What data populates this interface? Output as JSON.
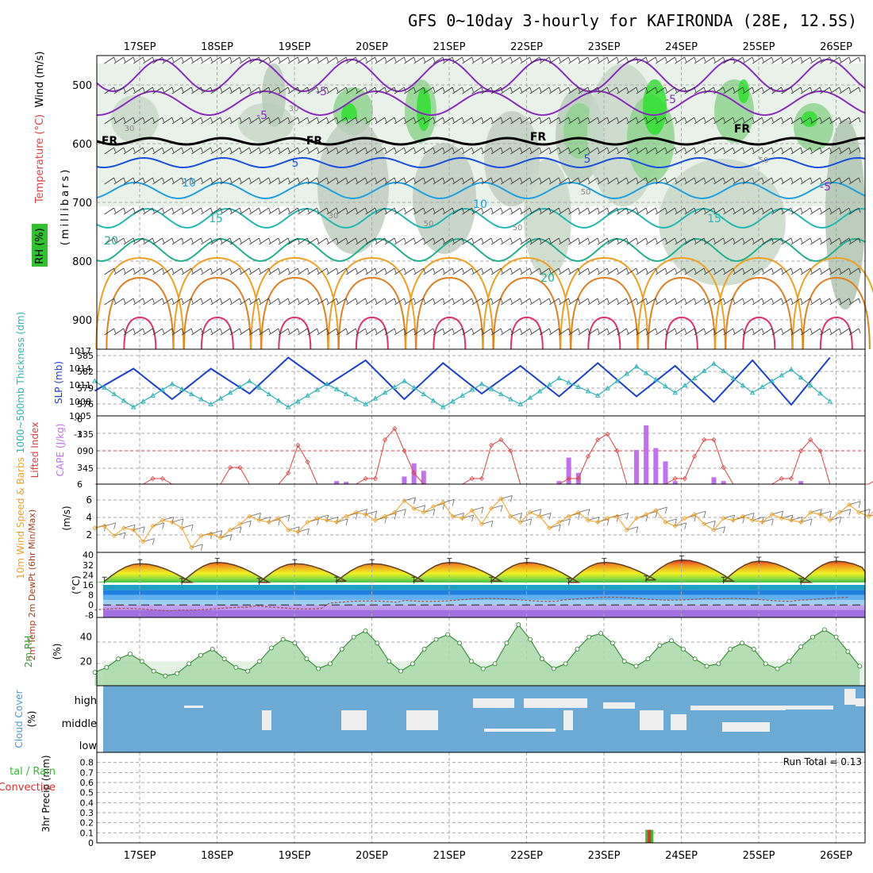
{
  "title": "GFS 0~10day 3-hourly for KAFIRONDA (28E, 12.5S)",
  "date_labels": [
    "17SEP",
    "18SEP",
    "19SEP",
    "20SEP",
    "21SEP",
    "22SEP",
    "23SEP",
    "24SEP",
    "25SEP",
    "26SEP"
  ],
  "run_total": "Run Total = 0.13",
  "panels": {
    "upper": {
      "ylabel_parts": [
        "Wind (m/s)",
        "Temperature (°C)",
        "RH (%)"
      ],
      "ylabel_units": "(millibars)",
      "yticks": [
        "500",
        "600",
        "700",
        "800",
        "900"
      ],
      "isotherm_labels": [
        "-5",
        "-5",
        "-5",
        "-5",
        "5",
        "5",
        "10",
        "10",
        "15",
        "15",
        "20",
        "20",
        "FR",
        "FR",
        "FR",
        "FR"
      ],
      "rh_labels": [
        "30",
        "30",
        "30",
        "50",
        "50",
        "50",
        "50"
      ]
    },
    "slp": {
      "ylabel_left": "1000~500mb Thickness (dm)",
      "ylabel_right": "SLP (mb)",
      "left_ticks": [
        "585",
        "582",
        "579",
        "576"
      ],
      "right_ticks": [
        "1017",
        "1014",
        "1011",
        "1008",
        "1005"
      ]
    },
    "cape": {
      "ylabel_left": "Lifted Index",
      "ylabel_right": "CAPE (J/kg)",
      "left_ticks": [
        "-6",
        "-3",
        "0",
        "3",
        "6"
      ],
      "right_ticks": [
        "135",
        "90",
        "45"
      ]
    },
    "wind": {
      "ylabel": "10m Wind Speed & Barbs",
      "units": "(m/s)",
      "ticks": [
        "6",
        "4",
        "2"
      ]
    },
    "temp": {
      "ylabel": "2m Temp 2m DewPt (6hr Min/Max)",
      "units": "(°C)",
      "ticks": [
        "40",
        "32",
        "24",
        "16",
        "8",
        "0",
        "-8"
      ]
    },
    "rh2m": {
      "ylabel": "2m RH",
      "units": "(%)",
      "ticks": [
        "40",
        "20"
      ]
    },
    "cloud": {
      "ylabel": "Cloud Cover",
      "units": "(%)",
      "ticks": [
        "high",
        "middle",
        "low"
      ]
    },
    "precip": {
      "ylabel": "3hr Precip (mm)",
      "ylabel2": "tal / Rain",
      "ylabel3": "Convective",
      "ticks": [
        "0.8",
        "0.7",
        "0.6",
        "0.5",
        "0.4",
        "0.3",
        "0.2",
        "0.1",
        "0"
      ]
    }
  },
  "colors": {
    "slp_line": "#1a3fd0",
    "thickness_line": "#2ab3b8",
    "cape_bar": "#c070f0",
    "lifted_index": "#e04040",
    "wind_speed": "#f0a020",
    "rh_fill": "#a8d8a8",
    "cloud_bg": "#6aaad4",
    "cloud_fill": "#eeeeee",
    "precip_rain": "#30c030",
    "precip_conv": "#e03030"
  },
  "chart_data": [
    {
      "type": "line",
      "title": "1000~500mb Thickness / SLP",
      "x_hours": [
        0,
        12,
        24,
        36,
        48,
        60,
        72,
        84,
        96,
        108,
        120,
        132,
        144,
        156,
        168,
        180,
        192,
        204,
        216,
        228
      ],
      "series": [
        {
          "name": "SLP (mb)",
          "values": [
            1009.5,
            1013.5,
            1008.0,
            1013.5,
            1009.0,
            1015.5,
            1010.5,
            1015.0,
            1008.0,
            1014.5,
            1009.0,
            1014.0,
            1008.5,
            1014.5,
            1008.5,
            1014.0,
            1007.5,
            1015.0,
            1007.0,
            1015.5
          ]
        },
        {
          "name": "Thickness (dm)",
          "values": [
            580.5,
            576.0,
            580.0,
            576.5,
            580.5,
            576.0,
            580.0,
            576.5,
            580.5,
            576.0,
            580.0,
            576.5,
            581.0,
            578.0,
            583.0,
            578.5,
            583.5,
            578.5,
            582.5,
            577.0
          ]
        }
      ]
    },
    {
      "type": "bar",
      "title": "CAPE / Lifted Index",
      "cape_bars": [
        {
          "hour": 75,
          "value": 8
        },
        {
          "hour": 78,
          "value": 6
        },
        {
          "hour": 96,
          "value": 20
        },
        {
          "hour": 99,
          "value": 55
        },
        {
          "hour": 102,
          "value": 35
        },
        {
          "hour": 144,
          "value": 8
        },
        {
          "hour": 147,
          "value": 70
        },
        {
          "hour": 150,
          "value": 30
        },
        {
          "hour": 168,
          "value": 90
        },
        {
          "hour": 171,
          "value": 155
        },
        {
          "hour": 174,
          "value": 95
        },
        {
          "hour": 177,
          "value": 60
        },
        {
          "hour": 180,
          "value": 8
        },
        {
          "hour": 192,
          "value": 18
        },
        {
          "hour": 195,
          "value": 8
        },
        {
          "hour": 219,
          "value": 8
        }
      ],
      "lifted_index": [
        6,
        6,
        6,
        6,
        6,
        6,
        5,
        5,
        6,
        6,
        6,
        6,
        6,
        6,
        3,
        3,
        6,
        6,
        6,
        6,
        4,
        -1,
        2,
        6,
        6,
        6,
        6,
        6,
        5,
        5,
        -2,
        -4,
        0,
        4,
        6,
        6,
        6,
        6,
        6,
        5,
        5,
        -1,
        -2,
        0,
        6,
        6,
        6,
        6,
        6,
        5,
        5,
        1,
        -2,
        -3,
        0,
        6,
        6,
        6,
        6,
        6,
        5,
        5,
        1,
        -2,
        -2,
        3,
        6,
        6,
        6,
        6,
        6,
        5,
        5,
        0,
        -2,
        0,
        6,
        6,
        6,
        6,
        6,
        5,
        5,
        2,
        3,
        6
      ]
    },
    {
      "type": "line",
      "title": "10m Wind Speed",
      "values": [
        3,
        3.2,
        2.2,
        3,
        2.8,
        1.6,
        3.2,
        3.8,
        3.6,
        3,
        1,
        2.2,
        2.4,
        2,
        2.8,
        3.4,
        4.2,
        3.8,
        3.6,
        4,
        2.8,
        2.6,
        3.6,
        4,
        3.8,
        3.6,
        4.2,
        4.6,
        4.4,
        3.8,
        4.2,
        4.6,
        5.8,
        5,
        4.6,
        5.2,
        5.6,
        4.2,
        4,
        4.8,
        3.4,
        5,
        6,
        4.2,
        3.6,
        4.6,
        4.2,
        3,
        3.6,
        4.2,
        4.6,
        3.8,
        3.6,
        4,
        4.2,
        2.8,
        4,
        4.4,
        4.8,
        3.6,
        3.2,
        4,
        4.4,
        3.4,
        2.8,
        4,
        3.8,
        4.2,
        3.8,
        3.6,
        4.4,
        4,
        3.8,
        3.6,
        4.6,
        4.4,
        3.8,
        4.6,
        5.4,
        4.6,
        4.2,
        5.2,
        4.4,
        3.8,
        4.4
      ]
    },
    {
      "type": "area",
      "title": "2m Temp / DewPt",
      "max_temp": [
        33,
        34,
        33,
        33,
        34,
        34,
        34,
        36,
        35,
        35
      ],
      "min_temp": [
        19,
        18,
        18,
        19,
        19,
        19,
        18,
        20,
        19,
        18
      ],
      "dewpt": [
        -4,
        -3,
        -2,
        2,
        4,
        4,
        5,
        5,
        4,
        5
      ]
    },
    {
      "type": "area",
      "title": "2m RH",
      "values": [
        11,
        15,
        22,
        26,
        20,
        12,
        8,
        10,
        18,
        25,
        30,
        22,
        15,
        12,
        20,
        31,
        38,
        35,
        22,
        14,
        18,
        30,
        40,
        45,
        35,
        20,
        12,
        18,
        30,
        38,
        42,
        35,
        20,
        14,
        18,
        35,
        50,
        38,
        22,
        14,
        18,
        30,
        40,
        43,
        35,
        20,
        16,
        22,
        33,
        37,
        30,
        22,
        16,
        18,
        30,
        35,
        30,
        18,
        14,
        20,
        32,
        40,
        46,
        40,
        28,
        16
      ]
    },
    {
      "type": "bar",
      "title": "3hr Precip",
      "bars": [
        {
          "hour": 172,
          "rain": 0.13,
          "convective": 0.13
        }
      ],
      "ylim": [
        0,
        0.9
      ]
    }
  ]
}
